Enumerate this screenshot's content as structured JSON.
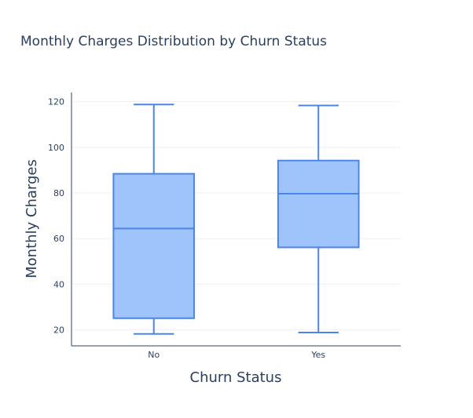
{
  "chart_data": {
    "type": "box",
    "title": "Monthly Charges Distribution by Churn Status",
    "xlabel": "Churn Status",
    "ylabel": "Monthly Charges",
    "categories": [
      "No",
      "Yes"
    ],
    "ylim": [
      13,
      124
    ],
    "yticks": [
      20,
      40,
      60,
      80,
      100,
      120
    ],
    "grid": true,
    "boxes": [
      {
        "category": "No",
        "min": 18.25,
        "q1": 25.1,
        "median": 64.4,
        "q3": 88.4,
        "max": 118.75
      },
      {
        "category": "Yes",
        "min": 18.85,
        "q1": 56.15,
        "median": 79.65,
        "q3": 94.2,
        "max": 118.35
      }
    ],
    "colors": {
      "line": "#4a86e8",
      "fill": "#9fc3fb"
    }
  }
}
